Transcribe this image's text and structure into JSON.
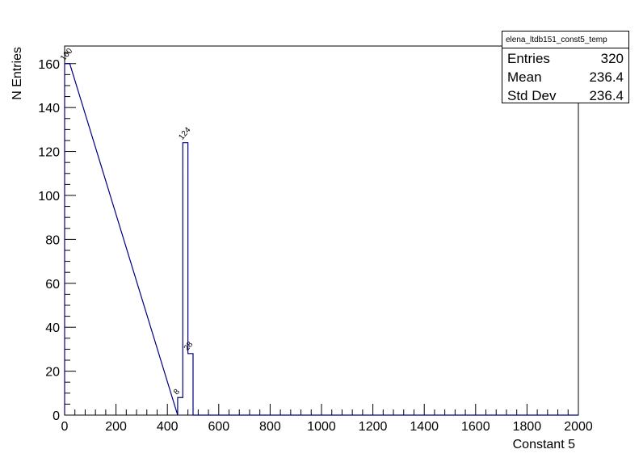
{
  "chart_data": {
    "type": "bar",
    "histogram": true,
    "xlabel": "Constant 5",
    "ylabel": "N Entries",
    "xlim": [
      0,
      2000
    ],
    "ylim": [
      0,
      168
    ],
    "x_ticks": [
      "0",
      "200",
      "400",
      "600",
      "800",
      "1000",
      "1200",
      "1400",
      "1600",
      "1800",
      "2000"
    ],
    "y_ticks": [
      "0",
      "20",
      "40",
      "60",
      "80",
      "100",
      "120",
      "140",
      "160"
    ],
    "bins": [
      {
        "lo": 0,
        "hi": 20,
        "value": 160,
        "label": "160"
      },
      {
        "lo": 440,
        "hi": 460,
        "value": 8,
        "label": "8"
      },
      {
        "lo": 460,
        "hi": 480,
        "value": 124,
        "label": "124"
      },
      {
        "lo": 480,
        "hi": 500,
        "value": 28,
        "label": "28"
      }
    ],
    "line_color": "#000080",
    "legend_position": "top-right",
    "stats": {
      "title": "elena_ltdb151_const5_temp",
      "entries_label": "Entries",
      "entries_value": "320",
      "mean_label": "Mean",
      "mean_value": "236.4",
      "stddev_label": "Std Dev",
      "stddev_value": "236.4"
    }
  }
}
